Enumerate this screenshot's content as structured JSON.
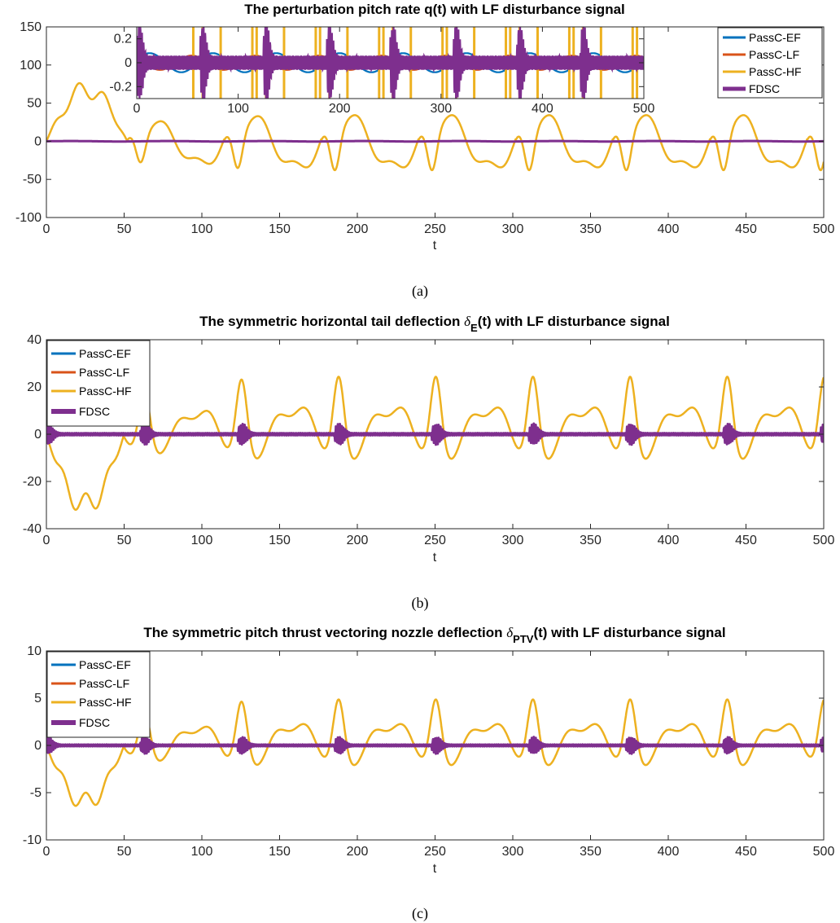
{
  "colors": {
    "PassC-EF": "#0072bd",
    "PassC-LF": "#d95319",
    "PassC-HF": "#edb120",
    "FDSC": "#7e2f8e",
    "axis": "#262626"
  },
  "chart_data": [
    {
      "type": "line",
      "title": "The perturbation pitch rate q(t) with LF disturbance signal",
      "title_parts": [],
      "caption": "(a)",
      "xlabel": "t",
      "ylabel": "",
      "xlim": [
        0,
        500
      ],
      "ylim": [
        -100,
        150
      ],
      "xticks": [
        "0",
        "50",
        "100",
        "150",
        "200",
        "250",
        "300",
        "350",
        "400",
        "450",
        "500"
      ],
      "yticks": [
        "-100",
        "-50",
        "0",
        "50",
        "100",
        "150"
      ],
      "legend_position": "top-right",
      "series": [
        {
          "name": "PassC-EF",
          "shape": "flat",
          "amplitude": 0.3
        },
        {
          "name": "PassC-LF",
          "shape": "flat",
          "amplitude": 0.3
        },
        {
          "name": "PassC-HF",
          "shape": "pitch",
          "scale": 1.0
        },
        {
          "name": "FDSC",
          "shape": "flat",
          "amplitude": 0.3
        }
      ],
      "inset": {
        "xlim": [
          0,
          500
        ],
        "ylim": [
          -0.3,
          0.3
        ],
        "xticks": [
          "0",
          "100",
          "200",
          "300",
          "400",
          "500"
        ],
        "yticks": [
          "-0.2",
          "0",
          "0.2"
        ]
      }
    },
    {
      "type": "line",
      "title": "The symmetric horizontal tail deflection δE(t) with LF disturbance signal",
      "title_parts": [
        "The symmetric horizontal tail deflection ",
        "δ",
        "E",
        "(t) with LF disturbance signal"
      ],
      "caption": "(b)",
      "xlabel": "t",
      "ylabel": "",
      "xlim": [
        0,
        500
      ],
      "ylim": [
        -40,
        40
      ],
      "xticks": [
        "0",
        "50",
        "100",
        "150",
        "200",
        "250",
        "300",
        "350",
        "400",
        "450",
        "500"
      ],
      "yticks": [
        "-40",
        "-20",
        "0",
        "20",
        "40"
      ],
      "legend_position": "top-left",
      "series": [
        {
          "name": "PassC-EF",
          "shape": "flat",
          "amplitude": 0.3
        },
        {
          "name": "PassC-LF",
          "shape": "flat",
          "amplitude": 0.3
        },
        {
          "name": "PassC-HF",
          "shape": "deflection",
          "scale": 1.0
        },
        {
          "name": "FDSC",
          "shape": "burst",
          "amplitude": 4
        }
      ]
    },
    {
      "type": "line",
      "title": "The symmetric pitch thrust vectoring nozzle deflection δPTV(t) with LF disturbance signal",
      "title_parts": [
        "The symmetric pitch thrust vectoring nozzle deflection ",
        "δ",
        "PTV",
        "(t) with LF disturbance signal"
      ],
      "caption": "(c)",
      "xlabel": "t",
      "ylabel": "",
      "xlim": [
        0,
        500
      ],
      "ylim": [
        -10,
        10
      ],
      "xticks": [
        "0",
        "50",
        "100",
        "150",
        "200",
        "250",
        "300",
        "350",
        "400",
        "450",
        "500"
      ],
      "yticks": [
        "-10",
        "-5",
        "0",
        "5",
        "10"
      ],
      "legend_position": "top-left",
      "series": [
        {
          "name": "PassC-EF",
          "shape": "flat",
          "amplitude": 0.05
        },
        {
          "name": "PassC-LF",
          "shape": "flat",
          "amplitude": 0.05
        },
        {
          "name": "PassC-HF",
          "shape": "deflection",
          "scale": 0.2
        },
        {
          "name": "FDSC",
          "shape": "burst",
          "amplitude": 0.8
        }
      ]
    }
  ]
}
